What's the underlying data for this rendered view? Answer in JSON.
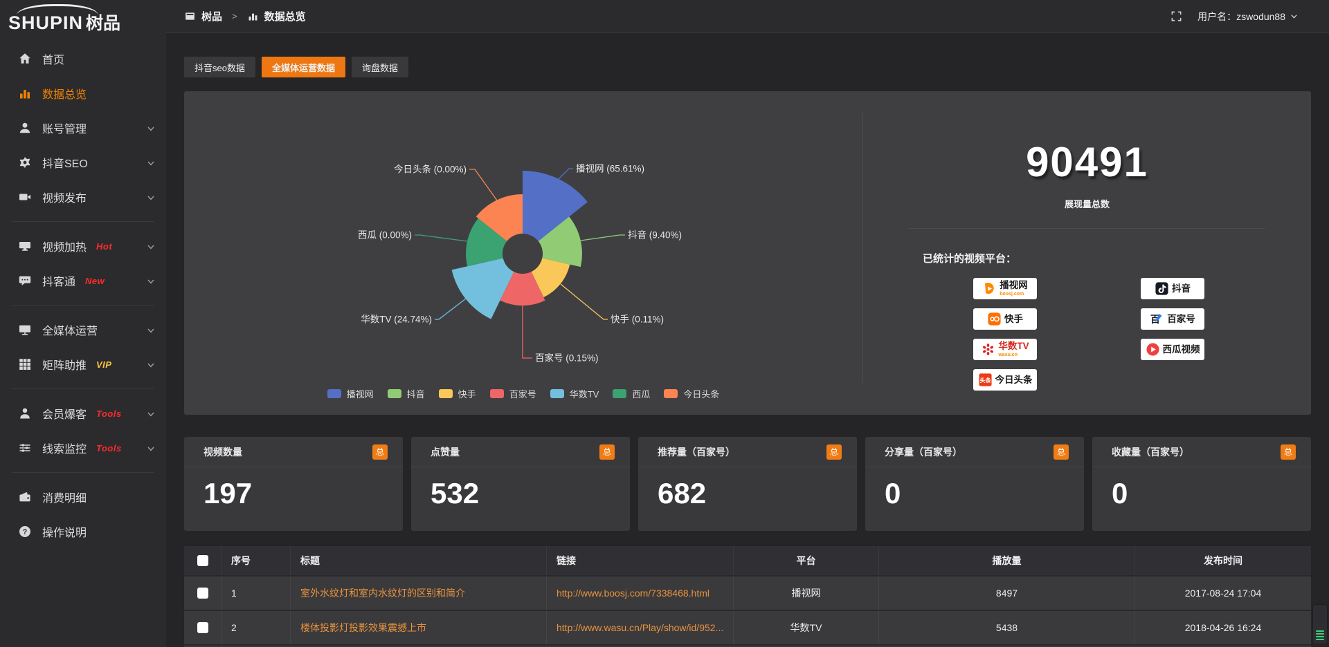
{
  "brand": {
    "name_en": "SHUPIN",
    "name_cn": "树品"
  },
  "topbar": {
    "breadcrumb_root": "树品",
    "breadcrumb_sep": ">",
    "breadcrumb_current": "数据总览",
    "username": "用户名：zswodun88"
  },
  "sidebar": {
    "items": [
      {
        "id": "home",
        "label": "首页",
        "icon": "home",
        "active": false,
        "chevron": false
      },
      {
        "id": "data-overview",
        "label": "数据总览",
        "icon": "bar-chart",
        "active": true,
        "chevron": false
      },
      {
        "id": "account-manage",
        "label": "账号管理",
        "icon": "user",
        "chevron": true
      },
      {
        "id": "douyin-seo",
        "label": "抖音SEO",
        "icon": "gear",
        "chevron": true
      },
      {
        "id": "video-publish",
        "label": "视频发布",
        "icon": "video",
        "chevron": true,
        "divider_after": true
      },
      {
        "id": "video-heat",
        "label": "视频加热",
        "icon": "screen",
        "badge": "Hot",
        "badge_color": "#ff2b2b",
        "chevron": true
      },
      {
        "id": "douketong",
        "label": "抖客通",
        "icon": "chat",
        "badge": "New",
        "badge_color": "#ff2b2b",
        "chevron": true,
        "divider_after": true
      },
      {
        "id": "media-ops",
        "label": "全媒体运营",
        "icon": "monitor",
        "chevron": true
      },
      {
        "id": "matrix-boost",
        "label": "矩阵助推",
        "icon": "grid",
        "badge": "VIP",
        "badge_color": "#ffc53d",
        "chevron": true,
        "divider_after": true
      },
      {
        "id": "member-baoke",
        "label": "会员爆客",
        "icon": "person",
        "badge": "Tools",
        "badge_color": "#ff2b2b",
        "chevron": true
      },
      {
        "id": "clue-monitor",
        "label": "线索监控",
        "icon": "sliders",
        "badge": "Tools",
        "badge_color": "#ff2b2b",
        "chevron": true,
        "divider_after": true
      },
      {
        "id": "expense-detail",
        "label": "消费明细",
        "icon": "wallet",
        "chevron": false
      },
      {
        "id": "help",
        "label": "操作说明",
        "icon": "question",
        "chevron": false
      }
    ]
  },
  "tabs": [
    {
      "label": "抖音seo数据",
      "active": false
    },
    {
      "label": "全媒体运营数据",
      "active": true
    },
    {
      "label": "询盘数据",
      "active": false
    }
  ],
  "chart_data": {
    "type": "pie",
    "variant": "nightingale-rose",
    "title": "",
    "categories": [
      "播视网",
      "抖音",
      "快手",
      "百家号",
      "华数TV",
      "西瓜",
      "今日头条"
    ],
    "values": [
      65.61,
      9.4,
      0.11,
      0.15,
      24.74,
      0.0,
      0.0
    ],
    "unit": "%",
    "labels": [
      "播视网 (65.61%)",
      "抖音 (9.40%)",
      "快手 (0.11%)",
      "百家号 (0.15%)",
      "华数TV (24.74%)",
      "西瓜 (0.00%)",
      "今日头条 (0.00%)"
    ],
    "colors": [
      "#5470c6",
      "#91cc75",
      "#fac858",
      "#ee6666",
      "#73c0de",
      "#3ba272",
      "#fc8452"
    ],
    "legend": [
      "播视网",
      "抖音",
      "快手",
      "百家号",
      "华数TV",
      "西瓜",
      "今日头条"
    ],
    "legend_position": "bottom",
    "display_radii": [
      120,
      86,
      70,
      75,
      105,
      82,
      86
    ],
    "inner_radius": 29
  },
  "overview": {
    "total_value": "90491",
    "total_label": "展现量总数",
    "platforms_title": "已统计的视频平台：",
    "platform_badges": [
      {
        "logo": "boosj",
        "name": "播视网",
        "sub": "boosj.com",
        "sub_color": "#ff8a00"
      },
      {
        "logo": "douyin",
        "name": "抖音"
      },
      {
        "logo": "kuaishou",
        "name": "快手"
      },
      {
        "logo": "baijiahao",
        "name": "百家号"
      },
      {
        "logo": "wasu",
        "name": "华数TV",
        "name_color": "#d42a1f",
        "sub": "wasu.cn",
        "sub_color": "#ff8a00"
      },
      {
        "logo": "xigua",
        "name": "西瓜视频"
      },
      {
        "logo": "toutiao",
        "name": "今日头条"
      }
    ]
  },
  "stat_cards": [
    {
      "label": "视频数量",
      "badge": "总",
      "value": "197"
    },
    {
      "label": "点赞量",
      "badge": "总",
      "value": "532"
    },
    {
      "label": "推荐量（百家号）",
      "badge": "总",
      "value": "682"
    },
    {
      "label": "分享量（百家号）",
      "badge": "总",
      "value": "0"
    },
    {
      "label": "收藏量（百家号）",
      "badge": "总",
      "value": "0"
    }
  ],
  "table": {
    "columns": [
      "序号",
      "标题",
      "链接",
      "平台",
      "播放量",
      "发布时间"
    ],
    "rows": [
      {
        "no": "1",
        "title": "室外水纹灯和室内水纹灯的区别和简介",
        "link": "http://www.boosj.com/7338468.html",
        "platform": "播视网",
        "plays": "8497",
        "time": "2017-08-24 17:04"
      },
      {
        "no": "2",
        "title": "楼体投影灯投影效果震撼上市",
        "link": "http://www.wasu.cn/Play/show/id/952...",
        "platform": "华数TV",
        "plays": "5438",
        "time": "2018-04-26 16:24"
      }
    ]
  },
  "colors": {
    "accent_orange": "#ee7711",
    "sidebar_active": "#f08200",
    "link_orange": "#e8923c",
    "hot_badge": "#ff2b2b",
    "vip_badge": "#ffc53d",
    "stat_badge": "#ef7c15"
  }
}
